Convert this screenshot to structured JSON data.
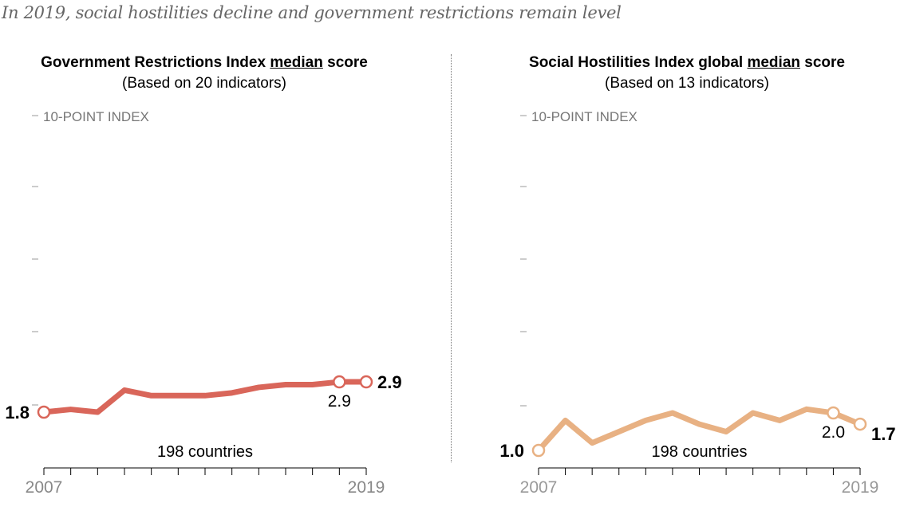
{
  "subtitle": "In 2019, social hostilities decline and government restrictions remain level",
  "chart_data": [
    {
      "type": "line",
      "title_pre": "Government Restrictions Index ",
      "title_em": "median",
      "title_post": " score",
      "subtitle": "(Based on 20 indicators)",
      "ylabel": "10-POINT INDEX",
      "ylim": [
        0,
        10
      ],
      "x": [
        2007,
        2008,
        2009,
        2010,
        2011,
        2012,
        2013,
        2014,
        2015,
        2016,
        2017,
        2018,
        2019
      ],
      "values": [
        1.8,
        1.9,
        1.8,
        2.6,
        2.4,
        2.4,
        2.4,
        2.5,
        2.7,
        2.8,
        2.8,
        2.9,
        2.9
      ],
      "x_tick_labels": [
        "2007",
        "2019"
      ],
      "annotation": "198 countries",
      "labels": {
        "start": "1.8",
        "prev": "2.9",
        "end": "2.9"
      },
      "color": "#d9665a"
    },
    {
      "type": "line",
      "title_pre": "Social Hostilities Index global ",
      "title_em": "median",
      "title_post": " score",
      "subtitle": "(Based on 13 indicators)",
      "ylabel": "10-POINT INDEX",
      "ylim": [
        0,
        10
      ],
      "x": [
        2007,
        2008,
        2009,
        2010,
        2011,
        2012,
        2013,
        2014,
        2015,
        2016,
        2017,
        2018,
        2019
      ],
      "values": [
        1.0,
        1.8,
        1.2,
        1.5,
        1.8,
        2.0,
        1.7,
        1.5,
        2.0,
        1.8,
        2.1,
        2.0,
        1.7
      ],
      "x_tick_labels": [
        "2007",
        "2019"
      ],
      "annotation": "198 countries",
      "labels": {
        "start": "1.0",
        "prev": "2.0",
        "end": "1.7"
      },
      "color": "#e8b183"
    }
  ]
}
